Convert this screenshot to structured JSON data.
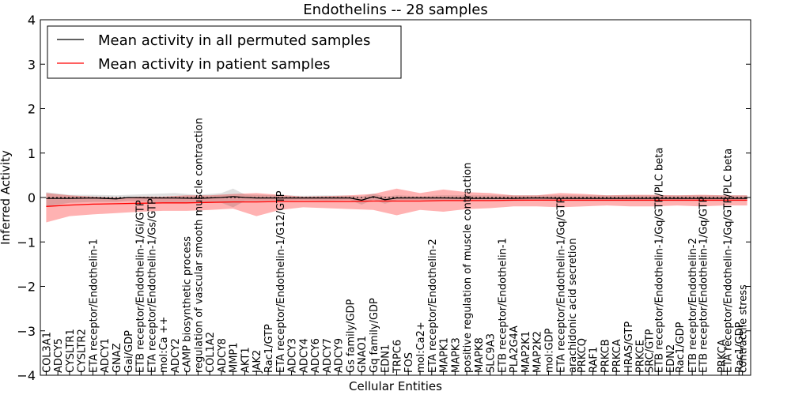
{
  "chart_data": {
    "type": "line",
    "title": "Endothelins -- 28 samples",
    "xlabel": "Cellular Entities",
    "ylabel": "Inferred Activity",
    "ylim": [
      -4,
      4
    ],
    "yticks": [
      -4,
      -3,
      -2,
      -1,
      0,
      1,
      2,
      3,
      4
    ],
    "ytick_labels": [
      "−4",
      "−3",
      "−2",
      "−1",
      "0",
      "1",
      "2",
      "3",
      "4"
    ],
    "legend_position": "top-left",
    "categories": [
      "COL3A1",
      "ADCY5",
      "CYSLTR1",
      "CYSLTR2",
      "ETA receptor/Endothelin-1",
      "ADCY1",
      "GNAZ",
      "Gai/GDP",
      "ETB receptor/Endothelin-1/Gi/GTP",
      "ETA receptor/Endothelin-1/Gs/GTP",
      "mol:Ca ++",
      "ADCY2",
      "cAMP biosynthetic process",
      "regulation of vascular smooth muscle contraction",
      "COL1A2",
      "ADCY8",
      "MMP1",
      "AKT1",
      "JAK2",
      "Rac1/GTP",
      "ETA receptor/Endothelin-1/G12/GTP",
      "ADCY3",
      "ADCY4",
      "ADCY6",
      "ADCY7",
      "ADCY9",
      "Gs family/GDP",
      "GNAO1",
      "Gq family/GDP",
      "EDN1",
      "TRPC6",
      "FOS",
      "mol:Ca2+",
      "ETA receptor/Endothelin-2",
      "MAPK1",
      "MAPK3",
      "positive regulation of muscle contraction",
      "MAPK8",
      "SLC9A3",
      "ETB receptor/Endothelin-1",
      "PLA2G4A",
      "MAP2K1",
      "MAP2K2",
      "mol:GDP",
      "ETA receptor/Endothelin-1/Gq/GTP",
      "arachidonic acid secretion",
      "PRKCQ",
      "RAF1",
      "PRKCB",
      "PRKCA",
      "HRAS/GTP",
      "PRKCE",
      "SRC/GTP",
      "ETB receptor/Endothelin-1/Gq/GTP/PLC beta",
      "EDN2",
      "Rac1/GDP",
      "ETB receptor/Endothelin-2",
      "ETB receptor/Endothelin-1/Gq/GTP",
      "PRKCA",
      "ETA receptor/Endothelin-1/Gq/GTP/PLC beta",
      "Rac1/GDP",
      "contractile stress"
    ],
    "label_positions": [
      0,
      1,
      2,
      3,
      4,
      5,
      6,
      7,
      8,
      9,
      10,
      11,
      12,
      13,
      14,
      15,
      16,
      17,
      18,
      19,
      20,
      21,
      22,
      23,
      24,
      25,
      26,
      27,
      28,
      29,
      30,
      31,
      32,
      33,
      34,
      35,
      36,
      37,
      38,
      39,
      40,
      41,
      42,
      43,
      44,
      45,
      45.8,
      46.8,
      47.8,
      48.8,
      49.8,
      50.8,
      51.6,
      52.4,
      53.4,
      54.2,
      55.3,
      56.2,
      57.8,
      58.3,
      59.3,
      59.6
    ],
    "x_range": [
      -0.5,
      60.3
    ],
    "series": [
      {
        "name": "Mean activity in all permuted samples",
        "color": "#000000",
        "x": [
          0,
          2,
          4,
          6,
          7,
          9,
          11,
          13,
          15,
          16,
          17,
          18,
          20,
          22,
          24,
          26,
          27,
          28,
          29,
          30,
          32,
          34,
          36,
          38,
          40,
          42,
          44,
          46,
          48,
          50,
          52,
          54,
          56,
          58,
          60
        ],
        "values": [
          -0.02,
          -0.02,
          -0.01,
          -0.03,
          0.0,
          -0.01,
          -0.01,
          -0.02,
          0.0,
          0.02,
          0.0,
          -0.01,
          -0.01,
          -0.01,
          -0.01,
          -0.01,
          -0.06,
          0.02,
          -0.05,
          -0.01,
          -0.01,
          -0.01,
          -0.02,
          -0.02,
          -0.02,
          -0.01,
          -0.02,
          -0.02,
          -0.02,
          -0.02,
          -0.02,
          -0.02,
          -0.02,
          -0.02,
          -0.02
        ],
        "upper": [
          0.12,
          0.06,
          0.06,
          0.05,
          0.06,
          0.08,
          0.1,
          0.06,
          0.1,
          0.2,
          0.07,
          0.06,
          0.05,
          0.04,
          0.05,
          0.04,
          0.02,
          0.09,
          0.02,
          0.05,
          0.03,
          0.05,
          0.05,
          0.05,
          0.05,
          0.05,
          0.05,
          0.05,
          0.05,
          0.05,
          0.05,
          0.05,
          0.05,
          0.05,
          0.05
        ],
        "lower": [
          -0.2,
          -0.12,
          -0.1,
          -0.1,
          -0.08,
          -0.1,
          -0.12,
          -0.1,
          -0.12,
          -0.22,
          -0.08,
          -0.08,
          -0.07,
          -0.06,
          -0.07,
          -0.06,
          -0.16,
          -0.05,
          -0.14,
          -0.06,
          -0.06,
          -0.06,
          -0.07,
          -0.08,
          -0.08,
          -0.07,
          -0.08,
          -0.08,
          -0.08,
          -0.08,
          -0.08,
          -0.08,
          -0.08,
          -0.08,
          -0.08
        ]
      },
      {
        "name": "Mean activity in patient samples",
        "color": "#ff0000",
        "x": [
          0,
          2,
          4,
          6,
          8,
          10,
          12,
          14,
          16,
          18,
          20,
          22,
          24,
          26,
          28,
          30,
          32,
          34,
          36,
          38,
          40,
          42,
          44,
          46,
          48,
          50,
          52,
          54,
          56,
          58,
          60
        ],
        "values": [
          -0.2,
          -0.17,
          -0.15,
          -0.14,
          -0.13,
          -0.12,
          -0.12,
          -0.11,
          -0.1,
          -0.1,
          -0.09,
          -0.09,
          -0.09,
          -0.09,
          -0.08,
          -0.08,
          -0.08,
          -0.07,
          -0.07,
          -0.07,
          -0.06,
          -0.06,
          -0.06,
          -0.06,
          -0.06,
          -0.06,
          -0.06,
          -0.06,
          -0.06,
          -0.06,
          -0.06
        ],
        "upper": [
          0.1,
          0.05,
          0.02,
          0.0,
          0.02,
          0.02,
          0.05,
          0.05,
          0.08,
          0.1,
          0.06,
          0.02,
          0.03,
          0.05,
          0.08,
          0.2,
          0.1,
          0.18,
          0.12,
          0.1,
          0.05,
          0.05,
          0.1,
          0.08,
          0.05,
          0.06,
          0.06,
          0.05,
          0.06,
          0.05,
          0.05
        ],
        "lower": [
          -0.56,
          -0.42,
          -0.38,
          -0.35,
          -0.32,
          -0.3,
          -0.3,
          -0.28,
          -0.25,
          -0.42,
          -0.28,
          -0.22,
          -0.24,
          -0.26,
          -0.28,
          -0.4,
          -0.28,
          -0.32,
          -0.26,
          -0.24,
          -0.2,
          -0.2,
          -0.22,
          -0.2,
          -0.18,
          -0.2,
          -0.2,
          -0.18,
          -0.2,
          -0.18,
          -0.18
        ]
      }
    ]
  }
}
